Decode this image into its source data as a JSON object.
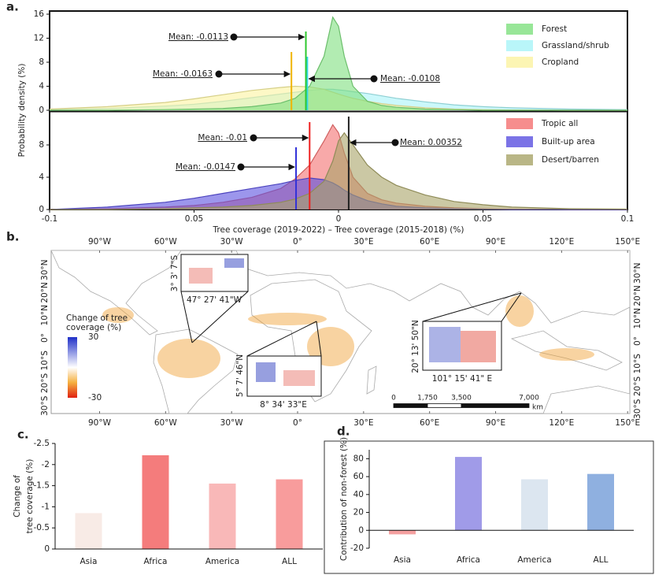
{
  "chart_data": [
    {
      "type": "area",
      "panel_label": "a.",
      "ylabel": "Probability density (%)",
      "x": [
        -0.1,
        -0.08,
        -0.06,
        -0.05,
        -0.04,
        -0.03,
        -0.02,
        -0.015,
        -0.01,
        -0.005,
        -0.002,
        0,
        0.002,
        0.005,
        0.01,
        0.015,
        0.02,
        0.03,
        0.04,
        0.05,
        0.06,
        0.08,
        0.1
      ],
      "xlim": [
        -0.1,
        0.1
      ],
      "ylim": [
        0,
        16
      ],
      "yticks": [
        0,
        4,
        8,
        12,
        16
      ],
      "legend": "upper right",
      "series": [
        {
          "name": "Grassland/shrub",
          "color": "#a8f4f8",
          "mean_color": "#33d6e6",
          "mean": -0.0108,
          "mean_label": "Mean: -0.0108",
          "values": [
            0.1,
            0.3,
            0.7,
            1,
            1.5,
            2.1,
            2.7,
            3,
            3.3,
            3.5,
            3.5,
            3.4,
            3.3,
            3.1,
            2.8,
            2.4,
            2,
            1.4,
            0.9,
            0.6,
            0.4,
            0.2,
            0.1
          ]
        },
        {
          "name": "Cropland",
          "color": "#fbf3a0",
          "mean_color": "#f0b400",
          "mean": -0.0163,
          "mean_label": "Mean: -0.0163",
          "values": [
            0.2,
            0.6,
            1.3,
            1.9,
            2.6,
            3.3,
            3.8,
            4,
            3.9,
            3.5,
            3,
            2.7,
            2.4,
            2,
            1.5,
            1.1,
            0.8,
            0.4,
            0.2,
            0.1,
            0.05,
            0,
            0
          ]
        },
        {
          "name": "Forest",
          "color": "#7ee07e",
          "mean_color": "#2ec82e",
          "mean": -0.0113,
          "mean_label": "Mean: -0.0113",
          "values": [
            0,
            0,
            0.1,
            0.2,
            0.3,
            0.6,
            1.2,
            2,
            4,
            9,
            15.5,
            14,
            9,
            4,
            1.5,
            0.8,
            0.5,
            0.2,
            0.1,
            0,
            0,
            0,
            0
          ]
        }
      ]
    },
    {
      "type": "area",
      "xlabel": "Tree coverage (2019-2022) – Tree coverage (2015-2018) (%)",
      "x": [
        -0.1,
        -0.08,
        -0.06,
        -0.05,
        -0.04,
        -0.03,
        -0.02,
        -0.015,
        -0.01,
        -0.005,
        -0.002,
        0,
        0.002,
        0.005,
        0.01,
        0.015,
        0.02,
        0.03,
        0.04,
        0.05,
        0.06,
        0.08,
        0.1
      ],
      "xlim": [
        -0.1,
        0.1
      ],
      "xticks": [
        -0.1,
        {
          "value": -0.05,
          "label": "0.05"
        },
        0,
        {
          "value": 0.05,
          "label": "0.05"
        },
        0.1
      ],
      "ylim": [
        0,
        12
      ],
      "yticks": [
        0,
        4,
        8
      ],
      "legend": "upper right",
      "series": [
        {
          "name": "Tropic all",
          "color": "#f47070",
          "mean_color": "#ee2020",
          "mean": -0.01,
          "mean_label": "Mean: -0.01",
          "values": [
            0,
            0.1,
            0.3,
            0.5,
            0.9,
            1.5,
            2.6,
            3.8,
            5.5,
            8.5,
            10.5,
            9.5,
            7,
            4,
            2,
            1.2,
            0.8,
            0.4,
            0.2,
            0.1,
            0.05,
            0,
            0
          ]
        },
        {
          "name": "Built-up area",
          "color": "#5a50e0",
          "mean_color": "#3030d8",
          "mean": -0.0147,
          "mean_label": "Mean: -0.0147",
          "values": [
            0,
            0.3,
            0.9,
            1.4,
            2,
            2.6,
            3.2,
            3.6,
            3.9,
            3.7,
            3.3,
            2.9,
            2.4,
            1.8,
            1.1,
            0.7,
            0.4,
            0.2,
            0.1,
            0.05,
            0,
            0,
            0
          ]
        },
        {
          "name": "Desert/barren",
          "color": "#a8a468",
          "mean_color": "#222222",
          "mean": 0.00352,
          "mean_label": "Mean: 0.00352",
          "values": [
            0,
            0,
            0.1,
            0.2,
            0.3,
            0.5,
            0.9,
            1.3,
            2,
            3.5,
            6,
            8.5,
            9.5,
            8,
            5.5,
            4,
            3,
            1.8,
            1,
            0.6,
            0.3,
            0.1,
            0.05
          ]
        }
      ]
    },
    {
      "type": "map",
      "panel_label": "b.",
      "xlim": [
        -112,
        151
      ],
      "ylim": [
        -32,
        40
      ],
      "xticks": [
        {
          "value": -90,
          "label": "90°W"
        },
        {
          "value": -60,
          "label": "60°W"
        },
        {
          "value": -30,
          "label": "30°W"
        },
        {
          "value": 0,
          "label": "0°"
        },
        {
          "value": 30,
          "label": "30°E"
        },
        {
          "value": 60,
          "label": "60°E"
        },
        {
          "value": 90,
          "label": "90°E"
        },
        {
          "value": 120,
          "label": "120°E"
        },
        {
          "value": 150,
          "label": "150°E"
        }
      ],
      "yticks": [
        {
          "value": 30,
          "label": "30°N"
        },
        {
          "value": 20,
          "label": "20°N"
        },
        {
          "value": 10,
          "label": "10°N"
        },
        {
          "value": 0,
          "label": "0°"
        },
        {
          "value": -10,
          "label": "10°S"
        },
        {
          "value": -20,
          "label": "20°S"
        },
        {
          "value": -30,
          "label": "30°S"
        }
      ],
      "colorbar": {
        "title": [
          "Change of tree",
          "coverage (%)"
        ],
        "ticks": [
          30,
          -30
        ]
      },
      "insets": [
        {
          "lat_label": "3° 3' 7\"S",
          "lon_label": "47° 27' 41\"W"
        },
        {
          "lat_label": "5° 7' 46\"N",
          "lon_label": "8° 34' 33\"E"
        },
        {
          "lat_label": "20° 13' 50\"N",
          "lon_label": "101° 15' 41\" E"
        }
      ],
      "scalebar": {
        "ticks": [
          0,
          {
            "value": 1750,
            "label": "1,750"
          },
          {
            "value": 3500,
            "label": "3,500"
          },
          {
            "value": 7000,
            "label": "7,000"
          }
        ],
        "unit": "km"
      }
    },
    {
      "type": "bar",
      "panel_label": "c.",
      "ylabel": [
        "Change of",
        "tree coverage (%)"
      ],
      "categories": [
        "Asia",
        "Africa",
        "America",
        "ALL"
      ],
      "values": [
        -0.85,
        -2.22,
        -1.55,
        -1.65
      ],
      "colors": [
        "#f8ebe6",
        "#f47c7c",
        "#f9b8b8",
        "#f89c9c"
      ],
      "ylim": [
        0,
        -2.5
      ],
      "yticks": [
        0,
        -0.5,
        -1,
        -1.5,
        -2,
        -2.5
      ]
    },
    {
      "type": "bar",
      "panel_label": "d.",
      "ylabel": [
        "Contribution of non-forest (%)"
      ],
      "categories": [
        "Asia",
        "Africa",
        "America",
        "ALL"
      ],
      "values": [
        -4.5,
        82,
        57,
        63
      ],
      "colors": [
        "#f4a0a0",
        "#a09be8",
        "#dce6f0",
        "#8fb0e0"
      ],
      "ylim": [
        -20,
        90
      ],
      "yticks": [
        -20,
        0,
        20,
        40,
        60,
        80
      ]
    }
  ]
}
